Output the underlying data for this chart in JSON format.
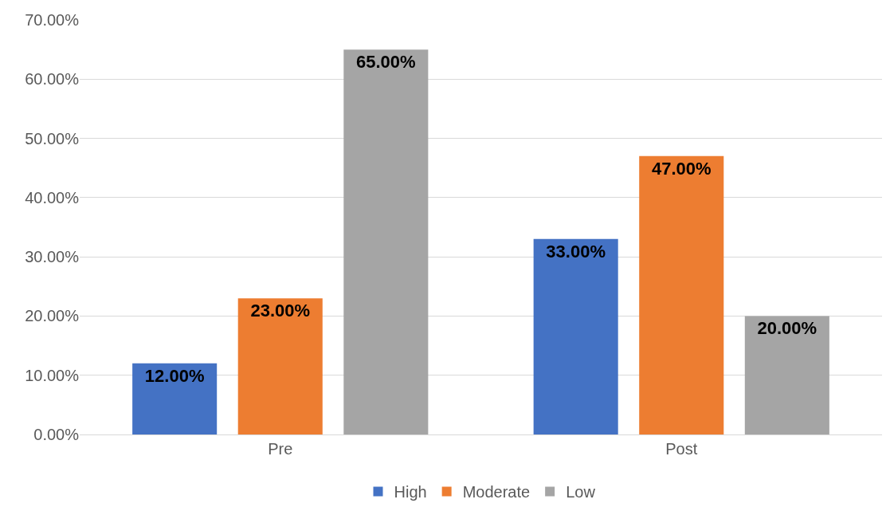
{
  "chart_data": {
    "type": "bar",
    "categories": [
      "Pre",
      "Post"
    ],
    "series": [
      {
        "name": "High",
        "color": "#4472c4",
        "values": [
          12,
          33
        ],
        "value_labels": [
          "12.00%",
          "33.00%"
        ]
      },
      {
        "name": "Moderate",
        "color": "#ed7d31",
        "values": [
          23,
          47
        ],
        "value_labels": [
          "23.00%",
          "47.00%"
        ]
      },
      {
        "name": "Low",
        "color": "#a5a5a5",
        "values": [
          65,
          20
        ],
        "value_labels": [
          "65.00%",
          "20.00%"
        ]
      }
    ],
    "ylim": [
      0,
      70
    ],
    "yticks": [
      {
        "value": 0,
        "label": "0.00%"
      },
      {
        "value": 10,
        "label": "10.00%"
      },
      {
        "value": 20,
        "label": "20.00%"
      },
      {
        "value": 30,
        "label": "30.00%"
      },
      {
        "value": 40,
        "label": "40.00%"
      },
      {
        "value": 50,
        "label": "50.00%"
      },
      {
        "value": 60,
        "label": "60.00%"
      },
      {
        "value": 70,
        "label": "70.00%"
      }
    ],
    "grid": "y",
    "legend": "bottom"
  }
}
